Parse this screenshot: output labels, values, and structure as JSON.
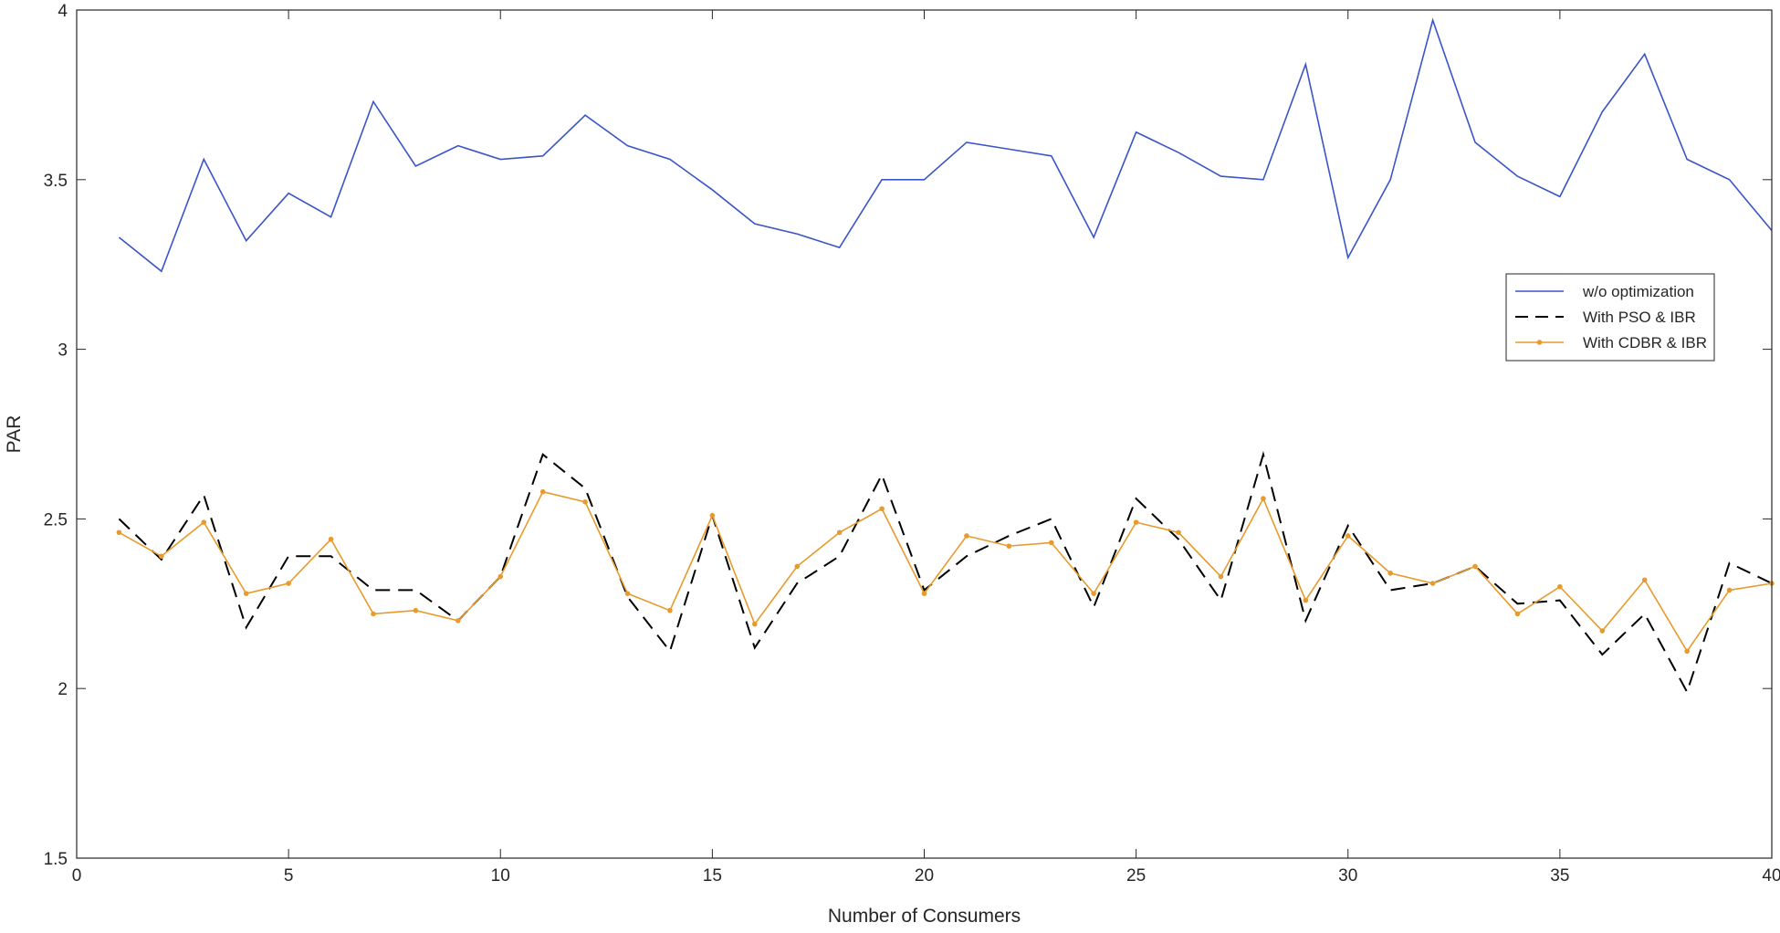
{
  "chart_data": {
    "type": "line",
    "title": "",
    "xlabel": "Number of Consumers",
    "ylabel": "PAR",
    "xlim": [
      0,
      40
    ],
    "ylim": [
      1.5,
      4
    ],
    "xticks": [
      0,
      5,
      10,
      15,
      20,
      25,
      30,
      35,
      40
    ],
    "yticks": [
      1.5,
      2,
      2.5,
      3,
      3.5,
      4
    ],
    "xtick_labels": [
      "0",
      "5",
      "10",
      "15",
      "20",
      "25",
      "30",
      "35",
      "40"
    ],
    "ytick_labels": [
      "1.5",
      "2",
      "2.5",
      "3",
      "3.5",
      "4"
    ],
    "grid": false,
    "legend_position": "right",
    "x": [
      1,
      2,
      3,
      4,
      5,
      6,
      7,
      8,
      9,
      10,
      11,
      12,
      13,
      14,
      15,
      16,
      17,
      18,
      19,
      20,
      21,
      22,
      23,
      24,
      25,
      26,
      27,
      28,
      29,
      30,
      31,
      32,
      33,
      34,
      35,
      36,
      37,
      38,
      39,
      40
    ],
    "series": [
      {
        "name": "w/o optimization",
        "color": "#3a55c8",
        "style": "solid",
        "marker": "none",
        "values": [
          3.33,
          3.23,
          3.56,
          3.32,
          3.46,
          3.39,
          3.73,
          3.54,
          3.6,
          3.56,
          3.57,
          3.69,
          3.6,
          3.56,
          3.47,
          3.37,
          3.34,
          3.3,
          3.5,
          3.5,
          3.61,
          3.59,
          3.57,
          3.33,
          3.64,
          3.58,
          3.51,
          3.5,
          3.84,
          3.27,
          3.5,
          3.97,
          3.61,
          3.51,
          3.45,
          3.7,
          3.87,
          3.56,
          3.5,
          3.35
        ]
      },
      {
        "name": "With PSO & IBR",
        "color": "#000000",
        "style": "dashed",
        "marker": "none",
        "values": [
          2.5,
          2.38,
          2.57,
          2.18,
          2.39,
          2.39,
          2.29,
          2.29,
          2.2,
          2.33,
          2.69,
          2.59,
          2.27,
          2.11,
          2.51,
          2.12,
          2.31,
          2.39,
          2.63,
          2.29,
          2.39,
          2.45,
          2.5,
          2.24,
          2.56,
          2.44,
          2.26,
          2.69,
          2.2,
          2.48,
          2.29,
          2.31,
          2.36,
          2.25,
          2.26,
          2.1,
          2.22,
          1.99,
          2.37,
          2.31
        ]
      },
      {
        "name": "With CDBR & IBR",
        "color": "#e89a2c",
        "style": "solid",
        "marker": "dot",
        "values": [
          2.46,
          2.39,
          2.49,
          2.28,
          2.31,
          2.44,
          2.22,
          2.23,
          2.2,
          2.33,
          2.58,
          2.55,
          2.28,
          2.23,
          2.51,
          2.19,
          2.36,
          2.46,
          2.53,
          2.28,
          2.45,
          2.42,
          2.43,
          2.28,
          2.49,
          2.46,
          2.33,
          2.56,
          2.26,
          2.45,
          2.34,
          2.31,
          2.36,
          2.22,
          2.3,
          2.17,
          2.32,
          2.11,
          2.29,
          2.31
        ]
      }
    ]
  }
}
